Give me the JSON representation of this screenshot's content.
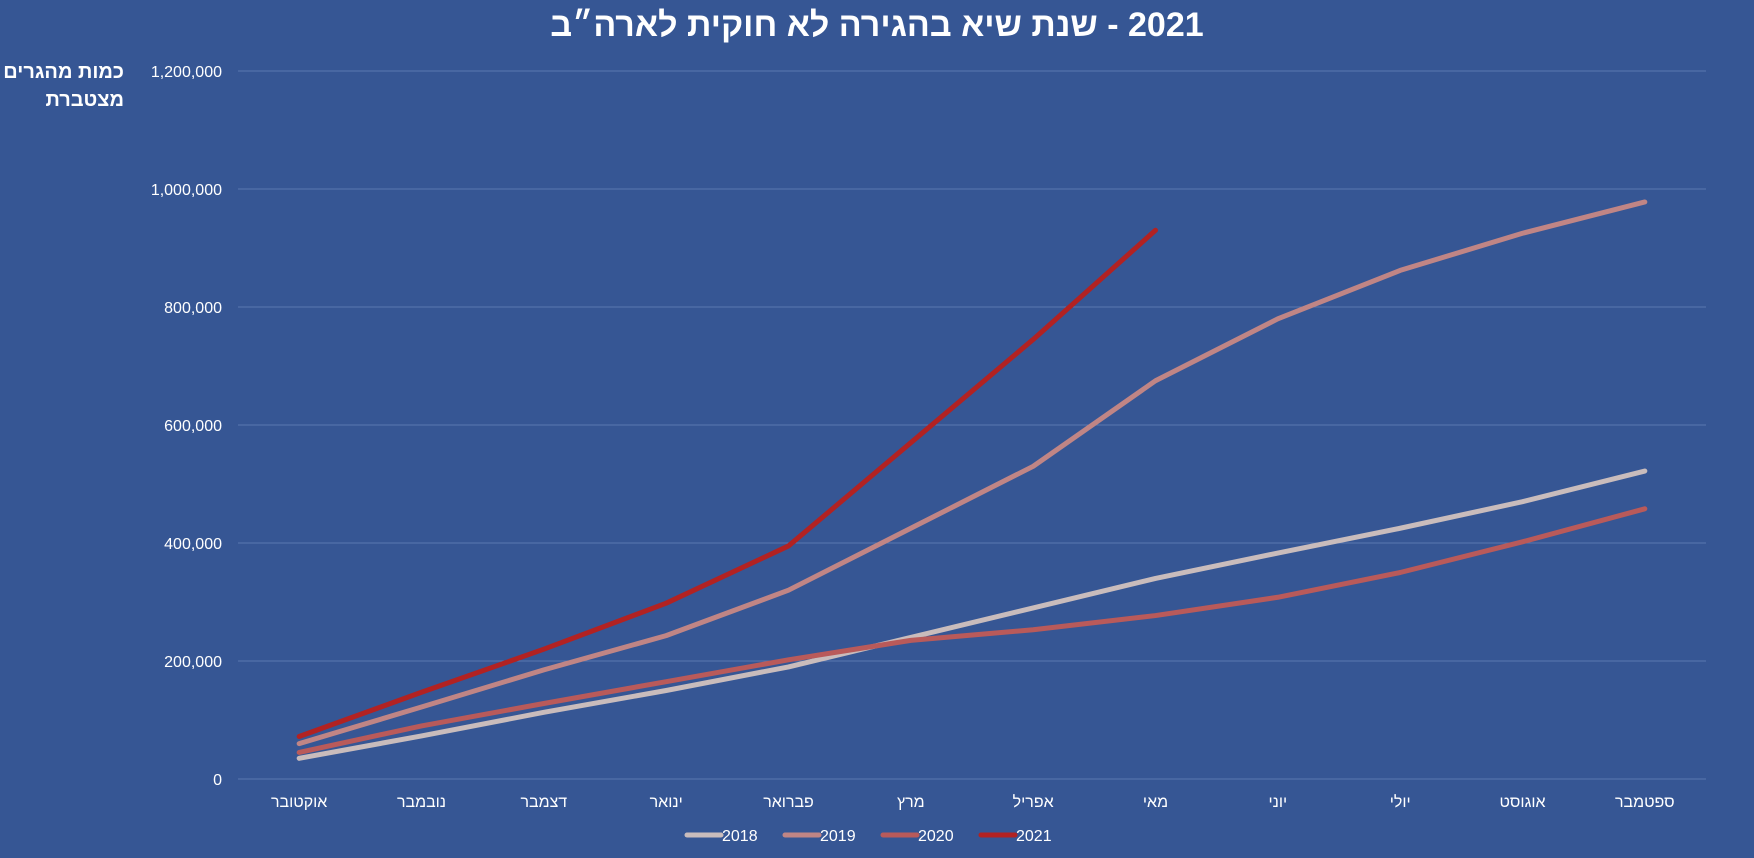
{
  "chart_data": {
    "type": "line",
    "title": "2021 - שנת שיא בהגירה לא חוקית לארה״ב",
    "ylabel": "כמות מהגרים מצטברת",
    "xlabel": "",
    "categories": [
      "אוקטובר",
      "נובמבר",
      "דצמבר",
      "ינואר",
      "פברואר",
      "מרץ",
      "אפריל",
      "מאי",
      "יוני",
      "יולי",
      "אוגוסט",
      "ספטמבר"
    ],
    "ylim": [
      0,
      1200000
    ],
    "y_ticks": [
      "0",
      "200,000",
      "400,000",
      "600,000",
      "800,000",
      "1,000,000",
      "1,200,000"
    ],
    "y_tick_values": [
      0,
      200000,
      400000,
      600000,
      800000,
      1000000,
      1200000
    ],
    "grid": true,
    "legend_position": "bottom",
    "series": [
      {
        "name": "2018",
        "color": "#c9bcbc",
        "values": [
          35000,
          73000,
          113000,
          150000,
          190000,
          240000,
          290000,
          340000,
          383000,
          425000,
          470000,
          522000
        ]
      },
      {
        "name": "2019",
        "color": "#c08585",
        "values": [
          60000,
          122000,
          185000,
          243000,
          320000,
          425000,
          530000,
          675000,
          780000,
          862000,
          925000,
          978000
        ]
      },
      {
        "name": "2020",
        "color": "#b95a5a",
        "values": [
          45000,
          90000,
          128000,
          165000,
          202000,
          235000,
          253000,
          277000,
          308000,
          350000,
          402000,
          458000
        ]
      },
      {
        "name": "2021",
        "color": "#b22222",
        "values": [
          72000,
          147000,
          220000,
          298000,
          395000,
          570000,
          745000,
          930000,
          null,
          null,
          null,
          null
        ]
      }
    ]
  }
}
